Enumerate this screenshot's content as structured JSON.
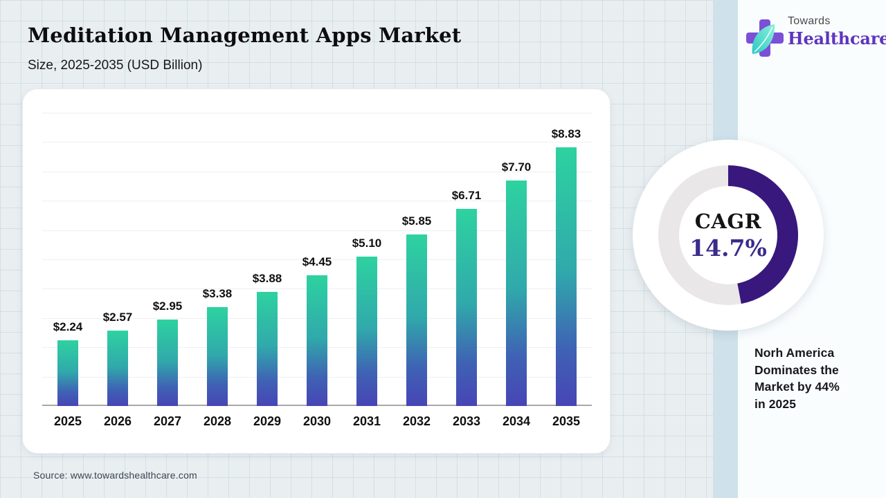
{
  "header": {
    "title": "Meditation Management Apps Market",
    "subtitle": "Size, 2025-2035 (USD Billion)"
  },
  "logo": {
    "towards": "Towards",
    "healthcare": "Healthcare",
    "cross_color": "#7b4fd6",
    "leaf_colors": [
      "#8cf0d8",
      "#2cc9c4"
    ],
    "wordmark_color": "#5d35bd"
  },
  "chart_data": {
    "type": "bar",
    "title": "Meditation Management Apps Market",
    "subtitle": "Size, 2025-2035 (USD Billion)",
    "categories": [
      "2025",
      "2026",
      "2027",
      "2028",
      "2029",
      "2030",
      "2031",
      "2032",
      "2033",
      "2034",
      "2035"
    ],
    "values": [
      2.24,
      2.57,
      2.95,
      3.38,
      3.88,
      4.45,
      5.1,
      5.85,
      6.71,
      7.7,
      8.83
    ],
    "labels": [
      "$2.24",
      "$2.57",
      "$2.95",
      "$3.38",
      "$3.88",
      "$4.45",
      "$5.10",
      "$5.85",
      "$6.71",
      "$7.70",
      "$8.83"
    ],
    "xlabel": "",
    "ylabel": "USD Billion",
    "ylim": [
      0,
      10
    ],
    "grid": true,
    "legend": "none",
    "bar_gradient": [
      "#2ed2a0",
      "#30a9ab",
      "#4745b5"
    ]
  },
  "cagr": {
    "label": "CAGR",
    "value": "14.7%",
    "arc_percent": 47,
    "arc_color": "#38187c",
    "ring_color": "#e9e7e8",
    "value_color": "#3c2b8c"
  },
  "callout": {
    "lines": [
      "Norh America",
      "Dominates the",
      "Market by 44%",
      "in 2025"
    ]
  },
  "source": {
    "text": "Source: www.towardshealthcare.com"
  },
  "theme": {
    "background": "#e9eef1",
    "stripe": "#cfe1ea",
    "card": "#ffffff"
  }
}
